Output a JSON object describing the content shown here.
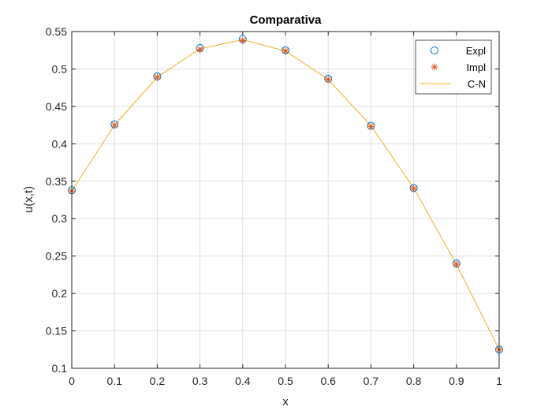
{
  "chart_data": {
    "type": "line",
    "title": "Comparativa",
    "xlabel": "x",
    "ylabel": "u(x,t)",
    "xlim": [
      0,
      1
    ],
    "ylim": [
      0.1,
      0.55
    ],
    "xticks": [
      0,
      0.1,
      0.2,
      0.3,
      0.4,
      0.5,
      0.6,
      0.7,
      0.8,
      0.9,
      1
    ],
    "xtick_labels": [
      "0",
      "0.1",
      "0.2",
      "0.3",
      "0.4",
      "0.5",
      "0.6",
      "0.7",
      "0.8",
      "0.9",
      "1"
    ],
    "yticks": [
      0.1,
      0.15,
      0.2,
      0.25,
      0.3,
      0.35,
      0.4,
      0.45,
      0.5,
      0.55
    ],
    "ytick_labels": [
      "0.1",
      "0.15",
      "0.2",
      "0.25",
      "0.3",
      "0.35",
      "0.4",
      "0.45",
      "0.5",
      "0.55"
    ],
    "grid": true,
    "legend_position": "top-right",
    "x": [
      0,
      0.1,
      0.2,
      0.3,
      0.4,
      0.5,
      0.6,
      0.7,
      0.8,
      0.9,
      1
    ],
    "series": [
      {
        "name": "Expl",
        "style": "circle-marker",
        "color": "#0072BD",
        "values": [
          0.338,
          0.426,
          0.49,
          0.528,
          0.54,
          0.525,
          0.487,
          0.424,
          0.341,
          0.24,
          0.125
        ]
      },
      {
        "name": "Impl",
        "style": "asterisk-marker",
        "color": "#D95319",
        "values": [
          0.337,
          0.425,
          0.489,
          0.526,
          0.538,
          0.524,
          0.486,
          0.423,
          0.34,
          0.239,
          0.125
        ]
      },
      {
        "name": "C-N",
        "style": "line",
        "color": "#EDB120",
        "values": [
          0.337,
          0.425,
          0.489,
          0.527,
          0.539,
          0.524,
          0.486,
          0.424,
          0.341,
          0.239,
          0.125
        ]
      }
    ]
  }
}
